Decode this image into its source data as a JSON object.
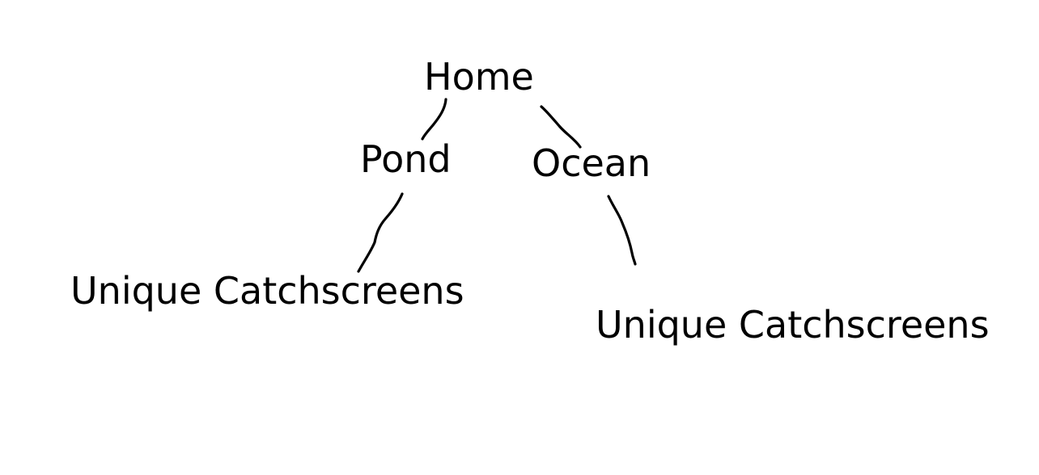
{
  "diagram": {
    "nodes": {
      "home": "Home",
      "pond": "Pond",
      "ocean": "Ocean",
      "pond_child": "Unique Catchscreens",
      "ocean_child": "Unique Catchscreens"
    },
    "edges": [
      {
        "from": "home",
        "to": "pond"
      },
      {
        "from": "home",
        "to": "ocean"
      },
      {
        "from": "pond",
        "to": "pond_child"
      },
      {
        "from": "ocean",
        "to": "ocean_child"
      }
    ],
    "ink_color": "#000000",
    "background_color": "#ffffff"
  }
}
